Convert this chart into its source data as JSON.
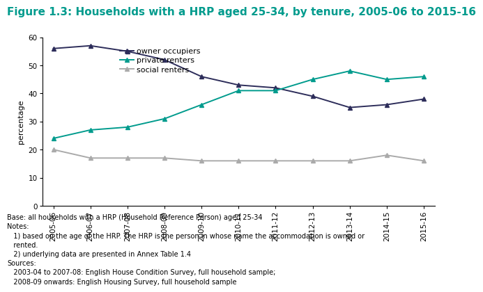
{
  "title": "Figure 1.3: Households with a HRP aged 25-34, by tenure, 2005-06 to 2015-16",
  "ylabel": "percentage",
  "xlabels": [
    "2005-06",
    "2006-07",
    "2007-08",
    "2008-09",
    "2009-10",
    "2010-11",
    "2011-12",
    "2012-13",
    "2013-14",
    "2014-15",
    "2015-16"
  ],
  "owner_occupiers": [
    56,
    57,
    55,
    52,
    46,
    43,
    42,
    39,
    35,
    36,
    38
  ],
  "private_renters": [
    24,
    27,
    28,
    31,
    36,
    41,
    41,
    45,
    48,
    45,
    46
  ],
  "social_renters": [
    20,
    17,
    17,
    17,
    16,
    16,
    16,
    16,
    16,
    18,
    16
  ],
  "owner_color": "#2d2d5a",
  "private_color": "#009B8D",
  "social_color": "#aaaaaa",
  "title_color": "#009B8D",
  "ylim": [
    0,
    60
  ],
  "yticks": [
    0,
    10,
    20,
    30,
    40,
    50,
    60
  ],
  "title_fontsize": 11,
  "label_fontsize": 8,
  "tick_fontsize": 7.5,
  "legend_fontsize": 8,
  "footer_lines": [
    "Base: all households with a HRP (Household Reference Person) aged 25-34",
    "Notes:",
    "   1) based on the age of the HRP. The HRP is the person in whose name the accommodation is owned or\n   rented.",
    "   2) underlying data are presented in Annex Table 1.4",
    "Sources:",
    "   2003-04 to 2007-08: English House Condition Survey, full household sample;",
    "   2008-09 onwards: English Housing Survey, full household sample"
  ]
}
